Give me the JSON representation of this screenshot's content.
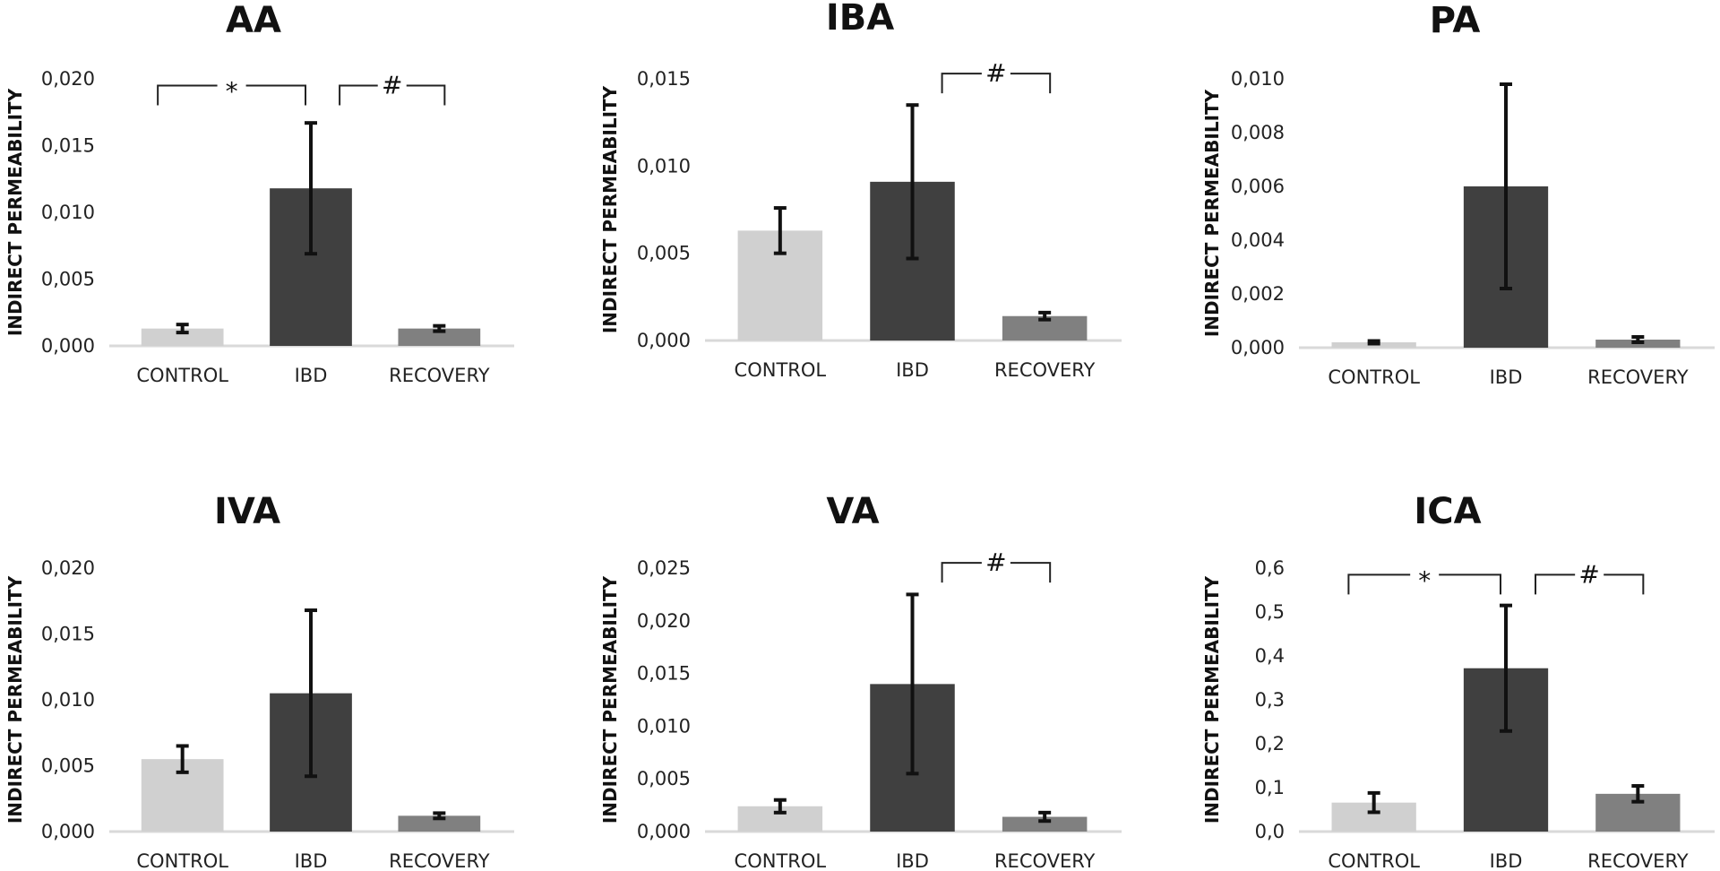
{
  "colors": {
    "control": "#d0d0d0",
    "ibd": "#404040",
    "recovery": "#808080",
    "axis": "#d9d9d9",
    "error": "#111111"
  },
  "chart_data": [
    {
      "type": "bar",
      "title": "AA",
      "ylabel": "INDIRECT PERMEABILITY",
      "categories": [
        "CONTROL",
        "IBD",
        "RECOVERY"
      ],
      "values": [
        0.0013,
        0.0118,
        0.0013
      ],
      "errors": [
        0.0003,
        0.0049,
        0.0002
      ],
      "ylim": [
        0,
        0.02
      ],
      "yticks": [
        "0,000",
        "0,005",
        "0,010",
        "0,015",
        "0,020"
      ],
      "annotations": [
        {
          "from": 0,
          "to": 1,
          "symbol": "*",
          "y": 0.0195
        },
        {
          "from": 1,
          "to": 2,
          "symbol": "#",
          "y": 0.0195
        }
      ]
    },
    {
      "type": "bar",
      "title": "IBA",
      "ylabel": "INDIRECT PERMEABILITY",
      "categories": [
        "CONTROL",
        "IBD",
        "RECOVERY"
      ],
      "values": [
        0.0063,
        0.0091,
        0.0014
      ],
      "errors": [
        0.0013,
        0.0044,
        0.0002
      ],
      "ylim": [
        0,
        0.015
      ],
      "yticks": [
        "0,000",
        "0,005",
        "0,010",
        "0,015"
      ],
      "annotations": [
        {
          "from": 1,
          "to": 2,
          "symbol": "#",
          "y": 0.0153
        }
      ]
    },
    {
      "type": "bar",
      "title": "PA",
      "ylabel": "INDIRECT PERMEABILITY",
      "categories": [
        "CONTROL",
        "IBD",
        "RECOVERY"
      ],
      "values": [
        0.0002,
        0.006,
        0.0003
      ],
      "errors": [
        5e-05,
        0.0038,
        0.0001
      ],
      "ylim": [
        0,
        0.01
      ],
      "yticks": [
        "0,000",
        "0,002",
        "0,004",
        "0,006",
        "0,008",
        "0,010"
      ],
      "annotations": []
    },
    {
      "type": "bar",
      "title": "IVA",
      "ylabel": "INDIRECT PERMEABILITY",
      "categories": [
        "CONTROL",
        "IBD",
        "RECOVERY"
      ],
      "values": [
        0.0055,
        0.0105,
        0.0012
      ],
      "errors": [
        0.001,
        0.0063,
        0.0002
      ],
      "ylim": [
        0,
        0.02
      ],
      "yticks": [
        "0,000",
        "0,005",
        "0,010",
        "0,015",
        "0,020"
      ],
      "annotations": []
    },
    {
      "type": "bar",
      "title": "VA",
      "ylabel": "INDIRECT PERMEABILITY",
      "categories": [
        "CONTROL",
        "IBD",
        "RECOVERY"
      ],
      "values": [
        0.0024,
        0.014,
        0.0014
      ],
      "errors": [
        0.0006,
        0.0085,
        0.0004
      ],
      "ylim": [
        0,
        0.025
      ],
      "yticks": [
        "0,000",
        "0,005",
        "0,010",
        "0,015",
        "0,020",
        "0,025"
      ],
      "annotations": [
        {
          "from": 1,
          "to": 2,
          "symbol": "#",
          "y": 0.0255
        }
      ]
    },
    {
      "type": "bar",
      "title": "ICA",
      "ylabel": "INDIRECT PERMEABILITY",
      "categories": [
        "CONTROL",
        "IBD",
        "RECOVERY"
      ],
      "values": [
        0.066,
        0.372,
        0.086
      ],
      "errors": [
        0.022,
        0.143,
        0.018
      ],
      "ylim": [
        0,
        0.6
      ],
      "yticks": [
        "0,0",
        "0,1",
        "0,2",
        "0,3",
        "0,4",
        "0,5",
        "0,6"
      ],
      "annotations": [
        {
          "from": 0,
          "to": 1,
          "symbol": "*",
          "y": 0.585
        },
        {
          "from": 1,
          "to": 2,
          "symbol": "#",
          "y": 0.585
        }
      ]
    }
  ]
}
